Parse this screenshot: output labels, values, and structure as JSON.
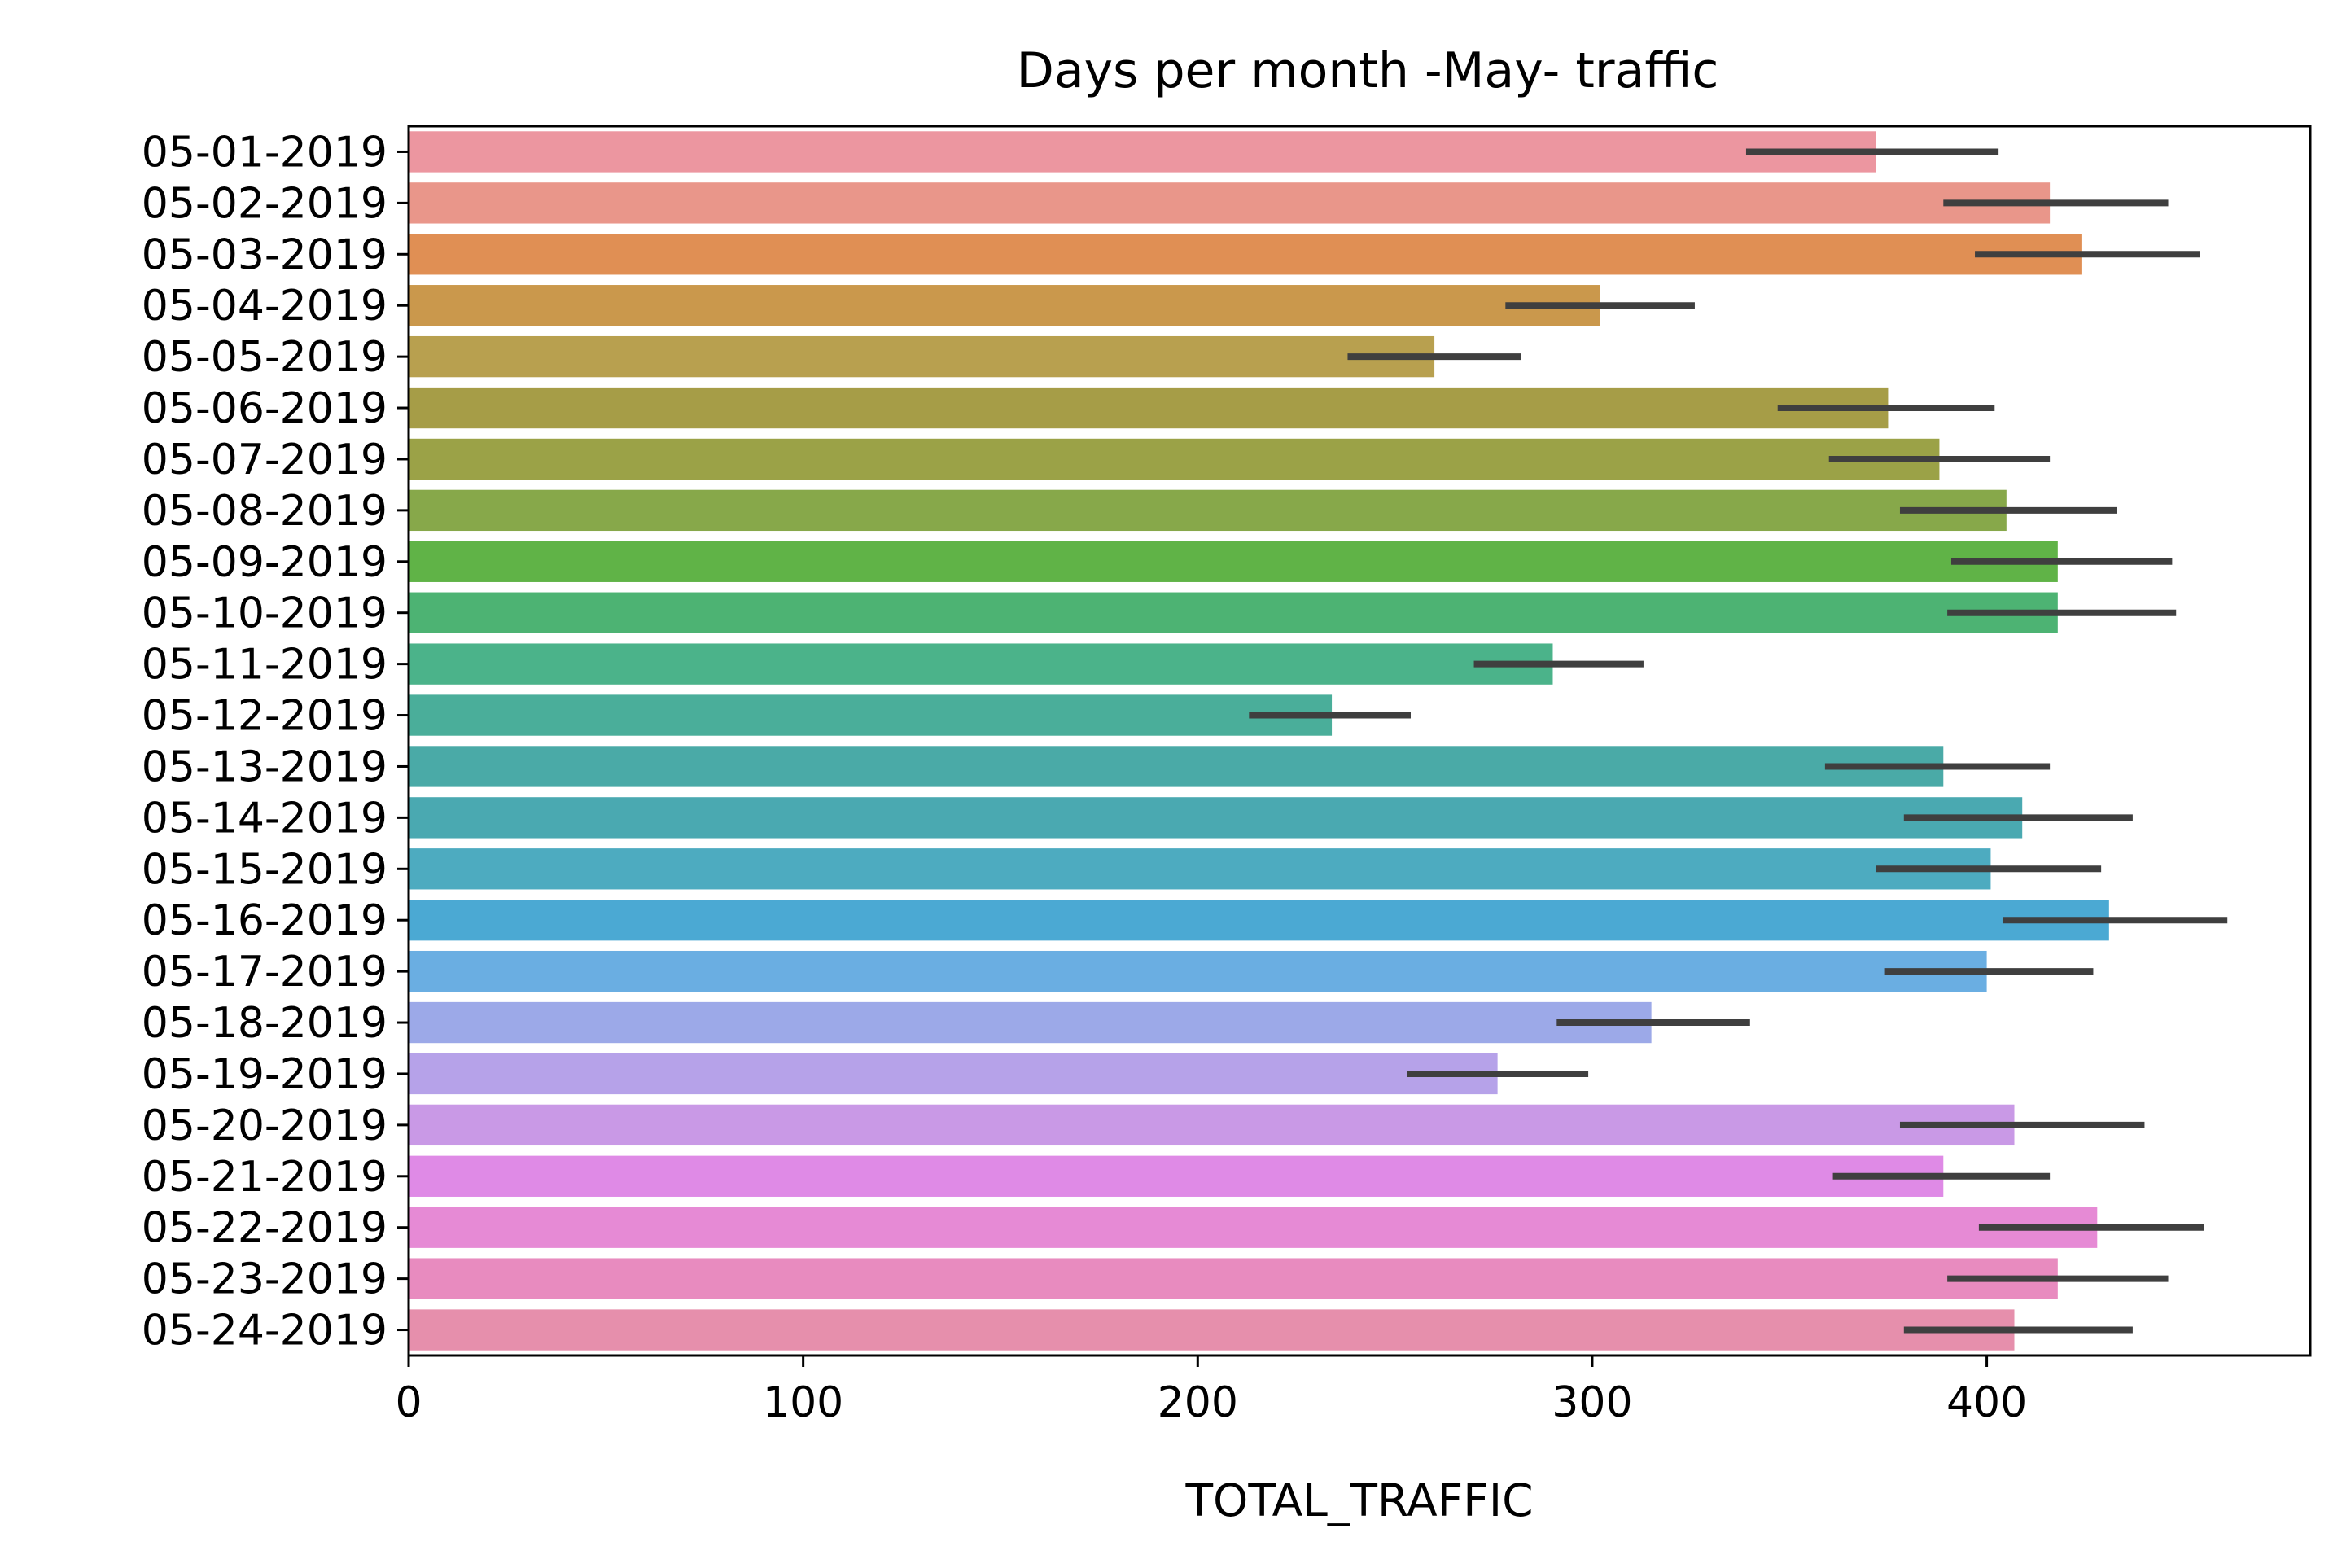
{
  "chart_data": {
    "type": "bar",
    "orientation": "horizontal",
    "title": "Days per month -May- traffic",
    "xlabel": "TOTAL_TRAFFIC",
    "ylabel": "",
    "xlim": [
      0,
      482
    ],
    "xticks": [
      "0",
      "100",
      "200",
      "300",
      "400"
    ],
    "grid": false,
    "categories": [
      "05-01-2019",
      "05-02-2019",
      "05-03-2019",
      "05-04-2019",
      "05-05-2019",
      "05-06-2019",
      "05-07-2019",
      "05-08-2019",
      "05-09-2019",
      "05-10-2019",
      "05-11-2019",
      "05-12-2019",
      "05-13-2019",
      "05-14-2019",
      "05-15-2019",
      "05-16-2019",
      "05-17-2019",
      "05-18-2019",
      "05-19-2019",
      "05-20-2019",
      "05-21-2019",
      "05-22-2019",
      "05-23-2019",
      "05-24-2019"
    ],
    "values": [
      372,
      416,
      424,
      302,
      260,
      375,
      388,
      405,
      418,
      418,
      290,
      234,
      389,
      409,
      401,
      431,
      400,
      315,
      276,
      407,
      389,
      428,
      418,
      407
    ],
    "error_low": [
      339,
      389,
      397,
      278,
      238,
      347,
      360,
      378,
      391,
      390,
      270,
      213,
      359,
      379,
      372,
      404,
      374,
      291,
      253,
      378,
      361,
      398,
      390,
      379
    ],
    "error_high": [
      403,
      446,
      454,
      326,
      282,
      402,
      416,
      433,
      447,
      448,
      313,
      254,
      416,
      437,
      429,
      461,
      427,
      340,
      299,
      440,
      416,
      455,
      446,
      437
    ],
    "colors": [
      "#ec96a0",
      "#e9968a",
      "#e08f54",
      "#ca984c",
      "#b8a04f",
      "#a69d47",
      "#9ba247",
      "#87a84a",
      "#60b347",
      "#4db373",
      "#4bb38a",
      "#4aae9a",
      "#4aaaa7",
      "#4aa9b1",
      "#4dabc0",
      "#4ba9d3",
      "#6aaee2",
      "#9ca9e8",
      "#b6a2e9",
      "#c999e6",
      "#df8ae6",
      "#e68ad5",
      "#e88bbf",
      "#e68fac"
    ],
    "error_color": "#3f3f3f"
  }
}
